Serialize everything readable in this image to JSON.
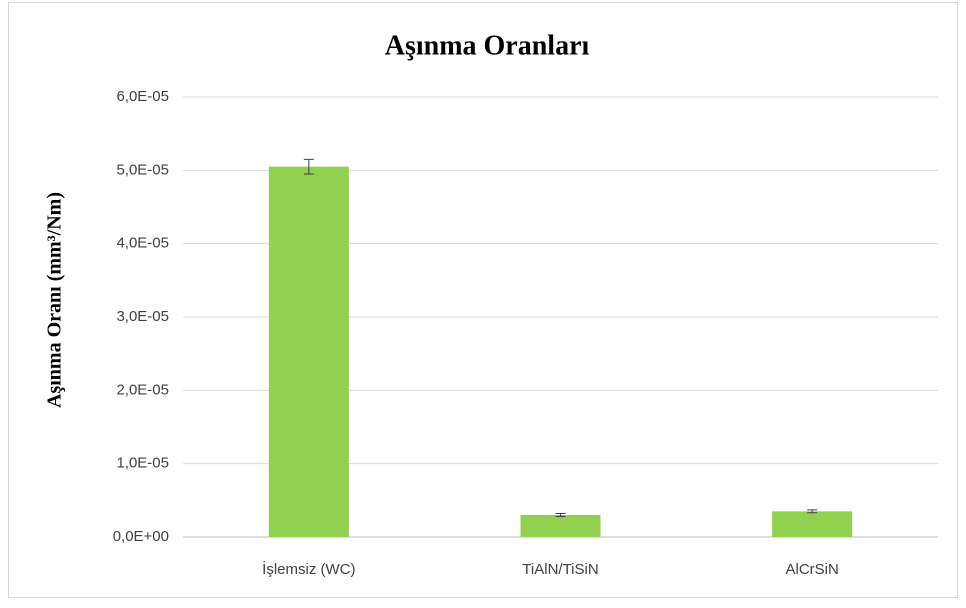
{
  "chart_data": {
    "type": "bar",
    "title": "Aşınma Oranları",
    "y_label": "Aşınma Oranı (mm³/Nm)",
    "categories": [
      "İşlemsiz (WC)",
      "TiAlN/TiSiN",
      "AlCrSiN"
    ],
    "values": [
      5.05e-05,
      3e-06,
      3.5e-06
    ],
    "errors": [
      1e-06,
      2e-07,
      2e-07
    ],
    "color": "#92d050",
    "ylim": [
      0,
      6e-05
    ],
    "yticks": [
      {
        "value": 0,
        "label": "0,0E+00"
      },
      {
        "value": 1e-05,
        "label": "1,0E-05"
      },
      {
        "value": 2e-05,
        "label": "2,0E-05"
      },
      {
        "value": 3e-05,
        "label": "3,0E-05"
      },
      {
        "value": 4e-05,
        "label": "4,0E-05"
      },
      {
        "value": 5e-05,
        "label": "5,0E-05"
      },
      {
        "value": 6e-05,
        "label": "6,0E-05"
      }
    ],
    "grid": true
  }
}
